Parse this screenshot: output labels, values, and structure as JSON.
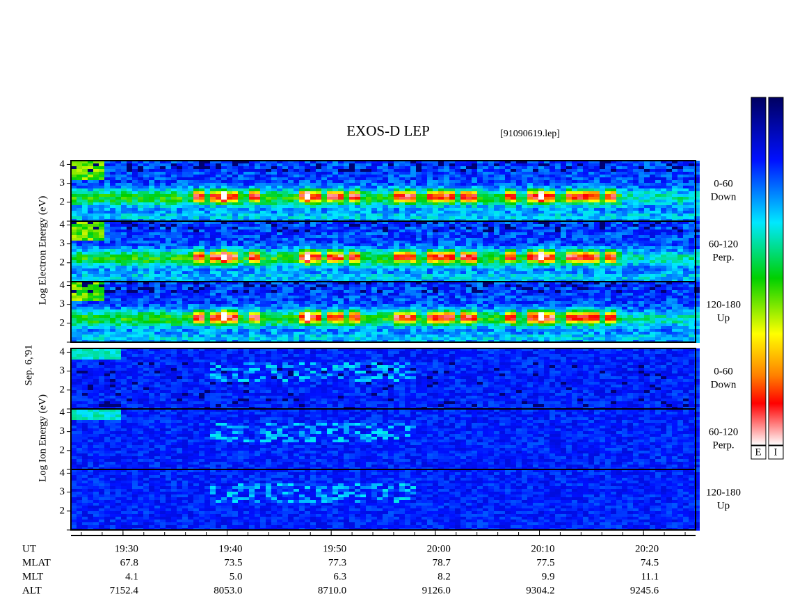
{
  "header": {
    "title": "EXOS-D LEP",
    "file": "[91090619.lep]",
    "date": "Sep. 6,'91"
  },
  "chart_data": {
    "type": "spectrogram",
    "xlim": [
      1165,
      1225
    ],
    "xticks": [
      {
        "value": 1170,
        "label": "19:30"
      },
      {
        "value": 1180,
        "label": "19:40"
      },
      {
        "value": 1190,
        "label": "19:50"
      },
      {
        "value": 1200,
        "label": "20:00"
      },
      {
        "value": 1210,
        "label": "20:10"
      },
      {
        "value": 1220,
        "label": "20:20"
      }
    ],
    "ylim": [
      1,
      4.2
    ],
    "yticks": [
      2,
      3,
      4
    ],
    "groups": [
      {
        "species": "electron",
        "ylabel": "Log Electron Energy (eV)",
        "panels": [
          {
            "pitch": "0-60",
            "direction": "Down"
          },
          {
            "pitch": "60-120",
            "direction": "Perp."
          },
          {
            "pitch": "120-180",
            "direction": "Up"
          }
        ]
      },
      {
        "species": "ion",
        "ylabel": "Log Ion Energy (eV)",
        "panels": [
          {
            "pitch": "0-60",
            "direction": "Down"
          },
          {
            "pitch": "60-120",
            "direction": "Perp."
          },
          {
            "pitch": "120-180",
            "direction": "Up"
          }
        ]
      }
    ]
  },
  "ephemeris": {
    "rows": [
      {
        "name": "UT"
      },
      {
        "name": "MLAT",
        "values": [
          "67.8",
          "73.5",
          "77.3",
          "78.7",
          "77.5",
          "74.5"
        ]
      },
      {
        "name": "MLT",
        "values": [
          "4.1",
          "5.0",
          "6.3",
          "8.2",
          "9.9",
          "11.1"
        ]
      },
      {
        "name": "ALT",
        "values": [
          "7152.4",
          "8053.0",
          "8710.0",
          "9126.0",
          "9304.2",
          "9245.6"
        ]
      }
    ]
  },
  "colorbar_labels": [
    "E",
    "I"
  ]
}
